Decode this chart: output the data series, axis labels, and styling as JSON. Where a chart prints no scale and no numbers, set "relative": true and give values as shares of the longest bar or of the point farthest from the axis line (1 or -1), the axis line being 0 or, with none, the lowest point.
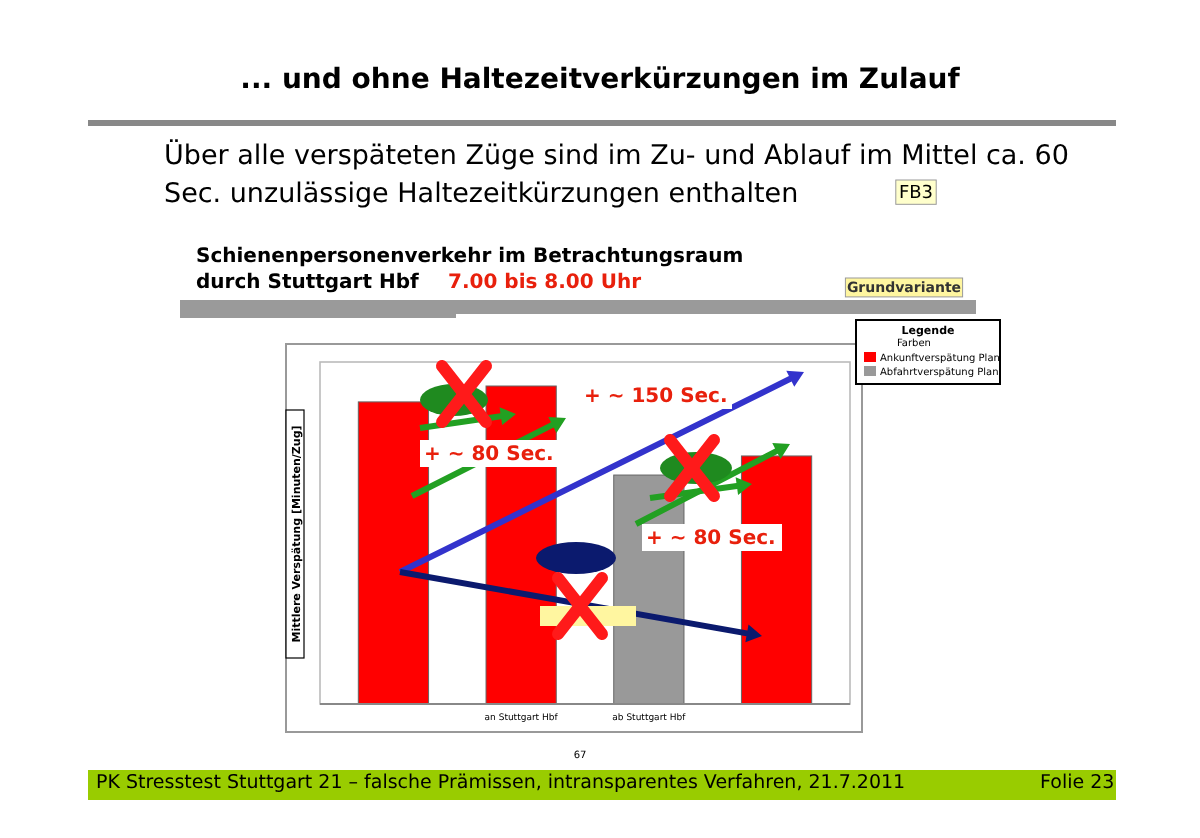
{
  "chart_data": {
    "type": "bar",
    "relative": true,
    "title": "... und ohne Haltezeitverkürzungen im Zulauf",
    "subtitle": "Über alle verspäteten Züge sind im Zu- und Ablauf im Mittel ca. 60 Sec. unzulässige Haltezeitkürzungen enthalten",
    "ylabel": "Mittlere Verspätung [Minuten/Zug]",
    "legend_title": "Legende",
    "legend": "top right",
    "categories": [
      null,
      "an Stuttgart Hbf",
      "ab Stuttgart Hbf",
      null
    ],
    "series": [
      {
        "name": "Ankunftverspätung Plan",
        "color": "#ff0000",
        "values": [
          0.95,
          1,
          null,
          0.78
        ]
      },
      {
        "name": "Abfahrtverspätung Plan",
        "color": "#999999",
        "values": [
          null,
          null,
          0.72,
          null
        ]
      }
    ],
    "annotations": [
      "FB3",
      "Schienenpersonenverkehr im Betrachtungsraum",
      "durch Stuttgart Hbf",
      "7.00 bis 8.00 Uhr",
      "Grundvariante",
      "Farben",
      "+ ~ 150 Sec.",
      "+ ~ 80 Sec.",
      "+ ~ 80 Sec.",
      "67",
      "PK Stresstest Stuttgart 21 – falsche Prämissen, intransparentes Verfahren, 21.7.2011",
      "Folie 23"
    ]
  }
}
